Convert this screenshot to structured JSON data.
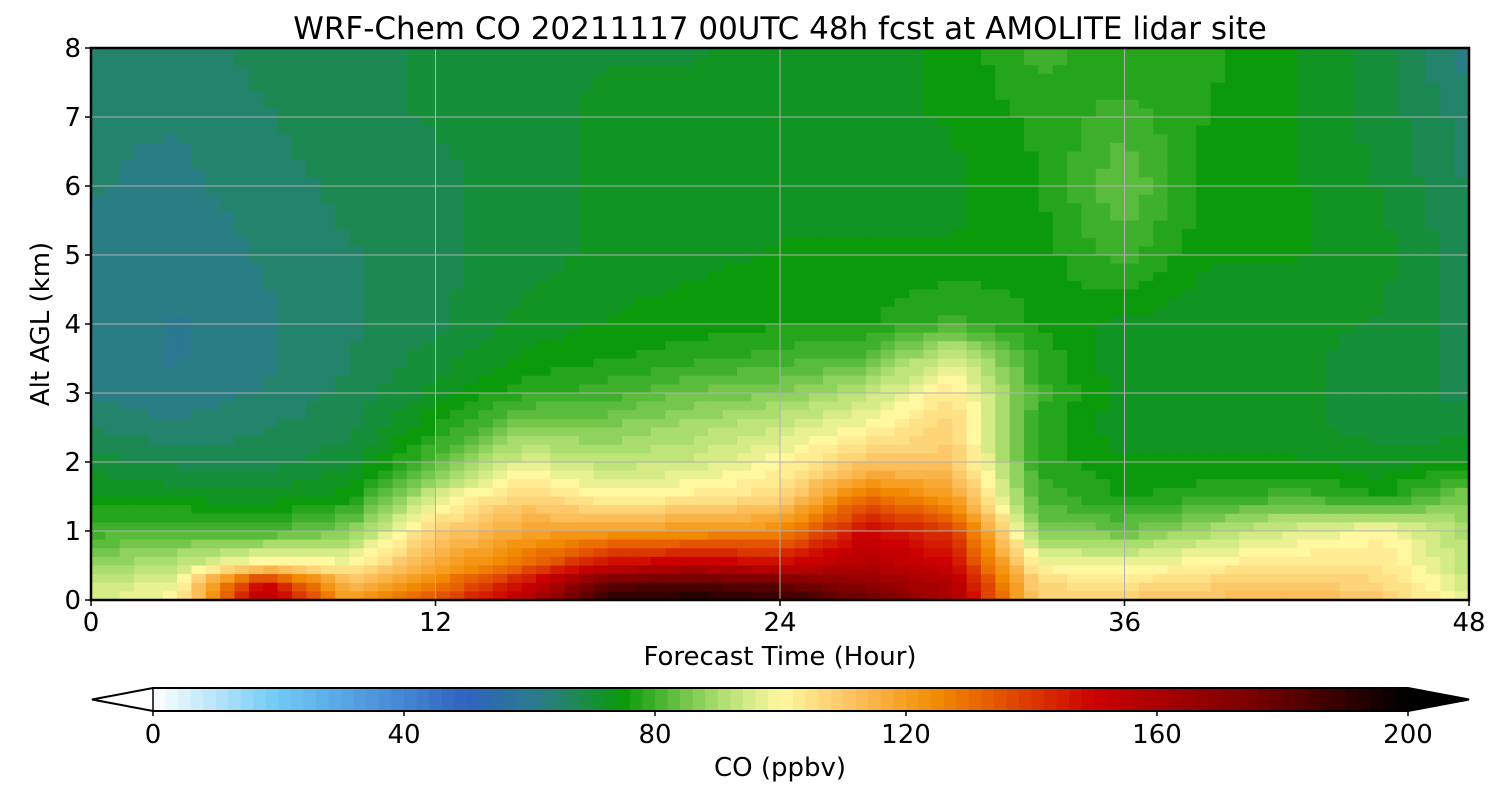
{
  "chart_data": {
    "type": "heatmap",
    "title": "WRF-Chem CO  20211117 00UTC 48h fcst at AMOLITE lidar site",
    "xlabel": "Forecast Time (Hour)",
    "ylabel": "Alt AGL (km)",
    "xlim": [
      0,
      48
    ],
    "ylim": [
      0,
      8
    ],
    "x_ticks": [
      0,
      12,
      24,
      36,
      48
    ],
    "y_ticks": [
      0,
      1,
      2,
      3,
      4,
      5,
      6,
      7,
      8
    ],
    "grid": true,
    "x": [
      0,
      3,
      6,
      9,
      12,
      15,
      18,
      21,
      24,
      27,
      30,
      33,
      36,
      39,
      42,
      45,
      48
    ],
    "y": [
      0,
      0.25,
      0.5,
      1,
      1.5,
      2,
      2.5,
      3,
      3.5,
      4,
      5,
      6,
      7,
      8
    ],
    "z": [
      [
        95,
        100,
        158,
        120,
        135,
        155,
        192,
        195,
        190,
        178,
        160,
        108,
        110,
        112,
        114,
        110,
        96
      ],
      [
        93,
        98,
        150,
        112,
        126,
        148,
        180,
        182,
        178,
        168,
        158,
        106,
        104,
        108,
        110,
        106,
        95
      ],
      [
        88,
        92,
        104,
        100,
        118,
        130,
        150,
        155,
        150,
        158,
        150,
        100,
        98,
        102,
        104,
        104,
        92
      ],
      [
        80,
        82,
        80,
        86,
        108,
        118,
        120,
        122,
        124,
        150,
        140,
        86,
        84,
        90,
        96,
        100,
        90
      ],
      [
        74,
        73,
        72,
        75,
        95,
        108,
        100,
        102,
        106,
        130,
        120,
        80,
        76,
        78,
        80,
        76,
        86
      ],
      [
        70,
        68,
        68,
        70,
        82,
        96,
        92,
        94,
        100,
        110,
        110,
        78,
        74,
        74,
        74,
        72,
        74
      ],
      [
        66,
        64,
        66,
        68,
        76,
        86,
        86,
        90,
        94,
        100,
        108,
        78,
        72,
        72,
        72,
        70,
        70
      ],
      [
        63,
        62,
        64,
        67,
        72,
        78,
        80,
        84,
        86,
        92,
        104,
        80,
        72,
        72,
        72,
        70,
        68
      ],
      [
        62,
        61,
        63,
        66,
        70,
        74,
        76,
        78,
        80,
        82,
        96,
        78,
        72,
        72,
        72,
        70,
        68
      ],
      [
        62,
        61,
        63,
        66,
        68,
        72,
        74,
        75,
        76,
        76,
        80,
        76,
        73,
        72,
        72,
        71,
        68
      ],
      [
        63,
        62,
        64,
        66,
        68,
        70,
        72,
        73,
        74,
        74,
        74,
        75,
        80,
        74,
        74,
        72,
        67
      ],
      [
        64,
        63,
        65,
        67,
        68,
        70,
        72,
        72,
        73,
        73,
        73,
        76,
        84,
        75,
        74,
        71,
        66
      ],
      [
        64,
        64,
        66,
        68,
        69,
        70,
        72,
        72,
        72,
        73,
        74,
        77,
        80,
        76,
        74,
        70,
        65
      ],
      [
        64,
        65,
        67,
        68,
        69,
        70,
        71,
        71,
        72,
        73,
        74,
        80,
        76,
        77,
        74,
        70,
        62
      ]
    ],
    "colorbar": {
      "label": "CO  (ppbv)",
      "ticks": [
        0,
        40,
        80,
        120,
        160,
        200
      ],
      "range": [
        0,
        200
      ],
      "extend": "both",
      "stops": [
        {
          "v": 0,
          "c": "#ffffff"
        },
        {
          "v": 20,
          "c": "#6ec9f5"
        },
        {
          "v": 50,
          "c": "#2f63c0"
        },
        {
          "v": 62,
          "c": "#2a7d88"
        },
        {
          "v": 75,
          "c": "#0a9a0a"
        },
        {
          "v": 90,
          "c": "#a9dd6c"
        },
        {
          "v": 100,
          "c": "#fff8a0"
        },
        {
          "v": 110,
          "c": "#fdc86a"
        },
        {
          "v": 125,
          "c": "#f28a00"
        },
        {
          "v": 150,
          "c": "#cc0000"
        },
        {
          "v": 175,
          "c": "#7a0000"
        },
        {
          "v": 200,
          "c": "#000000"
        }
      ]
    }
  }
}
